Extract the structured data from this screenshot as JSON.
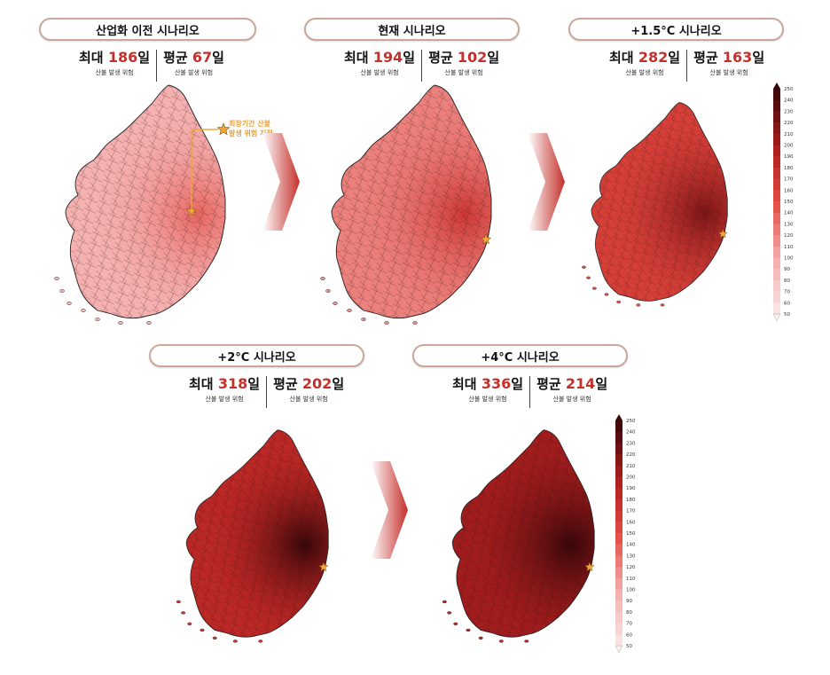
{
  "colors": {
    "accent": "#c4302b",
    "pill_border": "#c9a89a",
    "star": "#f0a73a"
  },
  "panels": [
    {
      "id": "preindustrial",
      "title": "산업화 이전 시나리오",
      "max_label": "최대",
      "max_value": "186",
      "unit": "일",
      "max_sub": "산불 발생 위험",
      "avg_label": "평균",
      "avg_value": "67",
      "avg_sub": "산불 발생 위험",
      "intensity": 0.28
    },
    {
      "id": "current",
      "title": "현재 시나리오",
      "max_label": "최대",
      "max_value": "194",
      "unit": "일",
      "max_sub": "산불 발생 위험",
      "avg_label": "평균",
      "avg_value": "102",
      "avg_sub": "산불 발생 위험",
      "intensity": 0.45
    },
    {
      "id": "plus15",
      "title": "+1.5°C 시나리오",
      "max_label": "최대",
      "max_value": "282",
      "unit": "일",
      "max_sub": "산불 발생 위험",
      "avg_label": "평균",
      "avg_value": "163",
      "avg_sub": "산불 발생 위험",
      "intensity": 0.7
    },
    {
      "id": "plus2",
      "title": "+2°C 시나리오",
      "max_label": "최대",
      "max_value": "318",
      "unit": "일",
      "max_sub": "산불 발생 위험",
      "avg_label": "평균",
      "avg_value": "202",
      "avg_sub": "산불 발생 위험",
      "intensity": 0.85
    },
    {
      "id": "plus4",
      "title": "+4°C 시나리오",
      "max_label": "최대",
      "max_value": "336",
      "unit": "일",
      "max_sub": "산불 발생 위험",
      "avg_label": "평균",
      "avg_value": "214",
      "avg_sub": "산불 발생 위험",
      "intensity": 0.95
    }
  ],
  "annotation": {
    "line1": "최장기간 산불",
    "line2": "발생 위험 지점"
  },
  "legend": {
    "ticks": [
      "250",
      "240",
      "230",
      "220",
      "210",
      "200",
      "190",
      "180",
      "170",
      "160",
      "150",
      "140",
      "130",
      "120",
      "110",
      "100",
      "90",
      "80",
      "70",
      "60",
      "50"
    ]
  }
}
